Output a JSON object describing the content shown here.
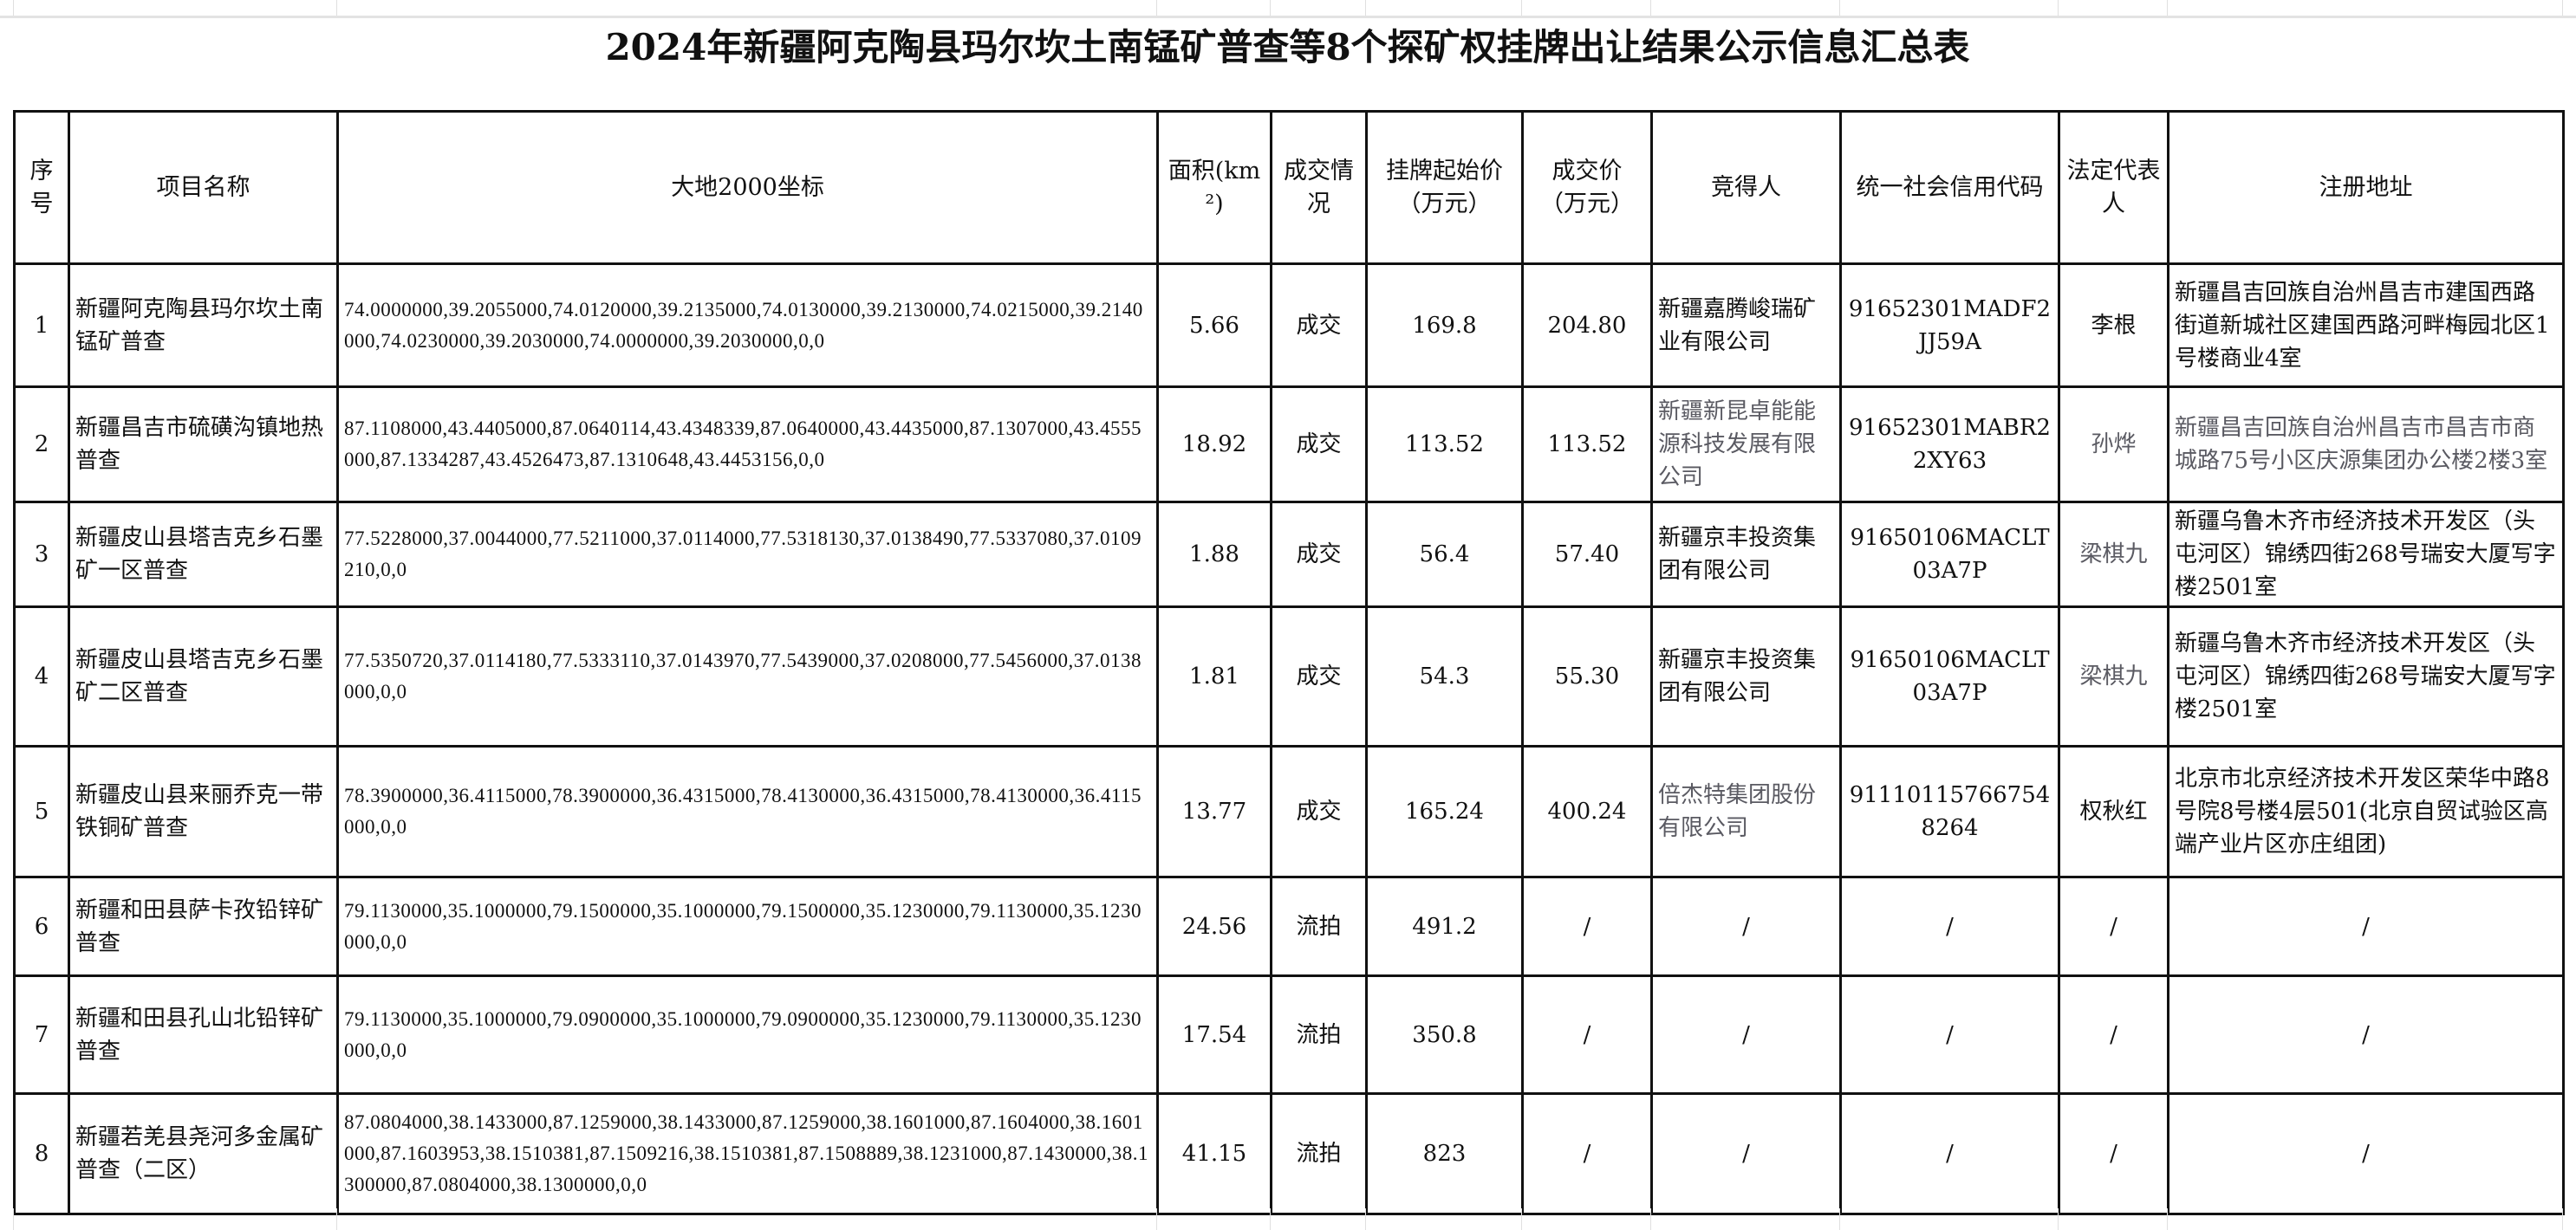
{
  "title": "2024年新疆阿克陶县玛尔坎土南锰矿普查等8个探矿权挂牌出让结果公示信息汇总表",
  "headers": [
    "序号",
    "项目名称",
    "大地2000坐标",
    "面积(km²)",
    "成交情况",
    "挂牌起始价（万元）",
    "成交价（万元）",
    "竞得人",
    "统一社会信用代码",
    "法定代表人",
    "注册地址"
  ],
  "rows": [
    {
      "no": "1",
      "name": "新疆阿克陶县玛尔坎土南锰矿普查",
      "coords": "74.0000000,39.2055000,74.0120000,39.2135000,74.0130000,39.2130000,74.0215000,39.2140000,74.0230000,39.2030000,74.0000000,39.2030000,0,0",
      "area": "5.66",
      "status": "成交",
      "start_price": "169.8",
      "deal_price": "204.80",
      "bidder": "新疆嘉腾峻瑞矿业有限公司",
      "credit_code": "91652301MADF2JJ59A",
      "legal_rep": "李根",
      "address": "新疆昌吉回族自治州昌吉市建国西路街道新城社区建国西路河畔梅园北区1号楼商业4室"
    },
    {
      "no": "2",
      "name": "新疆昌吉市硫磺沟镇地热普查",
      "coords": "87.1108000,43.4405000,87.0640114,43.4348339,87.0640000,43.4435000,87.1307000,43.4555000,87.1334287,43.4526473,87.1310648,43.4453156,0,0",
      "area": "18.92",
      "status": "成交",
      "start_price": "113.52",
      "deal_price": "113.52",
      "bidder": "新疆新昆卓能能源科技发展有限公司",
      "credit_code": "91652301MABR22XY63",
      "legal_rep": "孙烨",
      "address": "新疆昌吉回族自治州昌吉市昌吉市商城路75号小区庆源集团办公楼2楼3室"
    },
    {
      "no": "3",
      "name": "新疆皮山县塔吉克乡石墨矿一区普查",
      "coords": "77.5228000,37.0044000,77.5211000,37.0114000,77.5318130,37.0138490,77.5337080,37.0109210,0,0",
      "area": "1.88",
      "status": "成交",
      "start_price": "56.4",
      "deal_price": "57.40",
      "bidder": "新疆京丰投资集团有限公司",
      "credit_code": "91650106MACLT03A7P",
      "legal_rep": "梁棋九",
      "address": "新疆乌鲁木齐市经济技术开发区（头屯河区）锦绣四街268号瑞安大厦写字楼2501室"
    },
    {
      "no": "4",
      "name": "新疆皮山县塔吉克乡石墨矿二区普查",
      "coords": "77.5350720,37.0114180,77.5333110,37.0143970,77.5439000,37.0208000,77.5456000,37.0138000,0,0",
      "area": "1.81",
      "status": "成交",
      "start_price": "54.3",
      "deal_price": "55.30",
      "bidder": "新疆京丰投资集团有限公司",
      "credit_code": "91650106MACLT03A7P",
      "legal_rep": "梁棋九",
      "address": "新疆乌鲁木齐市经济技术开发区（头屯河区）锦绣四街268号瑞安大厦写字楼2501室"
    },
    {
      "no": "5",
      "name": "新疆皮山县来丽乔克一带铁铜矿普查",
      "coords": "78.3900000,36.4115000,78.3900000,36.4315000,78.4130000,36.4315000,78.4130000,36.4115000,0,0",
      "area": "13.77",
      "status": "成交",
      "start_price": "165.24",
      "deal_price": "400.24",
      "bidder": "倍杰特集团股份有限公司",
      "credit_code": "911101157667548264",
      "legal_rep": "权秋红",
      "address": "北京市北京经济技术开发区荣华中路8号院8号楼4层501(北京自贸试验区高端产业片区亦庄组团)"
    },
    {
      "no": "6",
      "name": "新疆和田县萨卡孜铅锌矿普查",
      "coords": "79.1130000,35.1000000,79.1500000,35.1000000,79.1500000,35.1230000,79.1130000,35.1230000,0,0",
      "area": "24.56",
      "status": "流拍",
      "start_price": "491.2",
      "deal_price": "/",
      "bidder": "/",
      "credit_code": "/",
      "legal_rep": "/",
      "address": "/"
    },
    {
      "no": "7",
      "name": "新疆和田县孔山北铅锌矿普查",
      "coords": "79.1130000,35.1000000,79.0900000,35.1000000,79.0900000,35.1230000,79.1130000,35.1230000,0,0",
      "area": "17.54",
      "status": "流拍",
      "start_price": "350.8",
      "deal_price": "/",
      "bidder": "/",
      "credit_code": "/",
      "legal_rep": "/",
      "address": "/"
    },
    {
      "no": "8",
      "name": "新疆若羌县尧河多金属矿普查（二区）",
      "coords": "87.0804000,38.1433000,87.1259000,38.1433000,87.1259000,38.1601000,87.1604000,38.1601000,87.1603953,38.1510381,87.1509216,38.1510381,87.1508889,38.1231000,87.1430000,38.1300000,87.0804000,38.1300000,0,0",
      "area": "41.15",
      "status": "流拍",
      "start_price": "823",
      "deal_price": "/",
      "bidder": "/",
      "credit_code": "/",
      "legal_rep": "/",
      "address": "/"
    }
  ]
}
